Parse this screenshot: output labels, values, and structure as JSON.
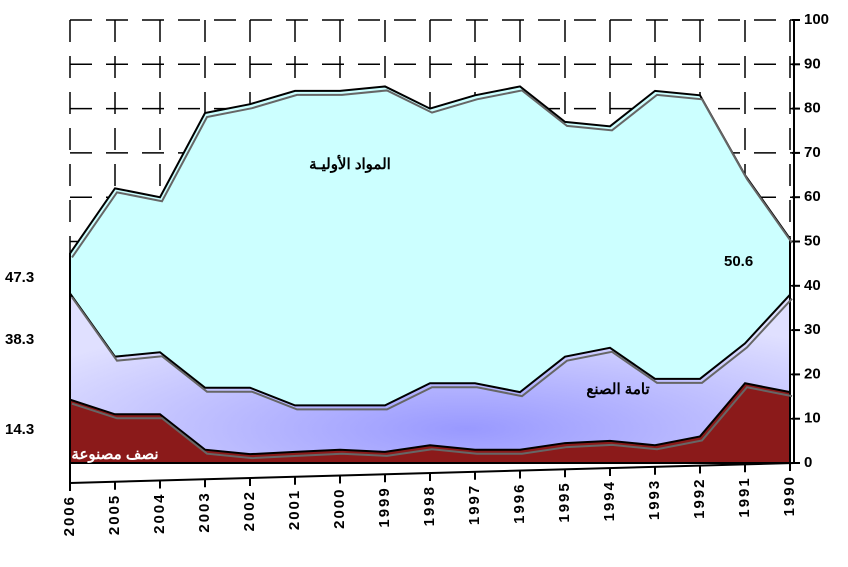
{
  "chart_data": {
    "type": "area",
    "categories": [
      "2006",
      "2005",
      "2004",
      "2003",
      "2002",
      "2001",
      "2000",
      "1999",
      "1998",
      "1997",
      "1996",
      "1995",
      "1994",
      "1993",
      "1992",
      "1991",
      "1990"
    ],
    "series": [
      {
        "name": "المواد الأوليـة",
        "color": "#ccffff",
        "values": [
          47.3,
          62,
          60,
          79,
          81,
          84,
          84,
          85,
          80,
          83,
          85,
          77,
          76,
          84,
          83,
          65,
          50.6
        ]
      },
      {
        "name": "تامة الصنع",
        "color": "#c8c8ff",
        "values": [
          38.3,
          24,
          25,
          17,
          17,
          13,
          13,
          13,
          18,
          18,
          16,
          24,
          26,
          19,
          19,
          27,
          38
        ]
      },
      {
        "name": "نصف مصنوعة",
        "color": "#8b1a1a",
        "values": [
          14.3,
          11,
          11,
          3,
          2,
          2.5,
          3,
          2.5,
          4,
          3,
          3,
          4.5,
          5,
          4,
          6,
          18,
          16
        ]
      }
    ],
    "ylim": [
      0,
      100
    ],
    "yticks": [
      0,
      10,
      20,
      30,
      40,
      50,
      60,
      70,
      80,
      90,
      100
    ],
    "grid": true
  }
}
